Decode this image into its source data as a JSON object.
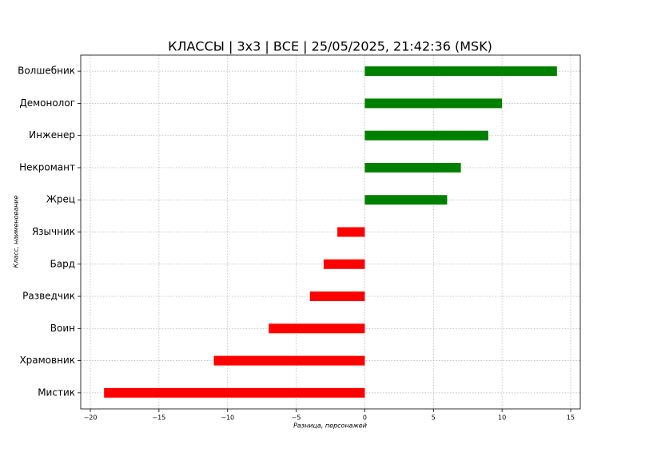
{
  "chart_data": {
    "type": "barh",
    "title": "КЛАССЫ | 3x3 | ВСЕ | 25/05/2025, 21:42:36 (MSK)",
    "xlabel": "Разница, персонажей",
    "ylabel": "Класс, наименование",
    "categories": [
      "Волшебник",
      "Демонолог",
      "Инженер",
      "Некромант",
      "Жрец",
      "Язычник",
      "Бард",
      "Разведчик",
      "Воин",
      "Храмовник",
      "Мистик"
    ],
    "values": [
      14,
      10,
      9,
      7,
      6,
      -2,
      -3,
      -4,
      -7,
      -11,
      -19
    ],
    "colors": [
      "#008000",
      "#008000",
      "#008000",
      "#008000",
      "#008000",
      "#ff0000",
      "#ff0000",
      "#ff0000",
      "#ff0000",
      "#ff0000",
      "#ff0000"
    ],
    "xlim": [
      -20.7,
      15.7
    ],
    "xticks": [
      {
        "value": -20,
        "label": "−20"
      },
      {
        "value": -15,
        "label": "−15"
      },
      {
        "value": -10,
        "label": "−10"
      },
      {
        "value": -5,
        "label": "−5"
      },
      0,
      5,
      10,
      15
    ],
    "grid": true
  }
}
